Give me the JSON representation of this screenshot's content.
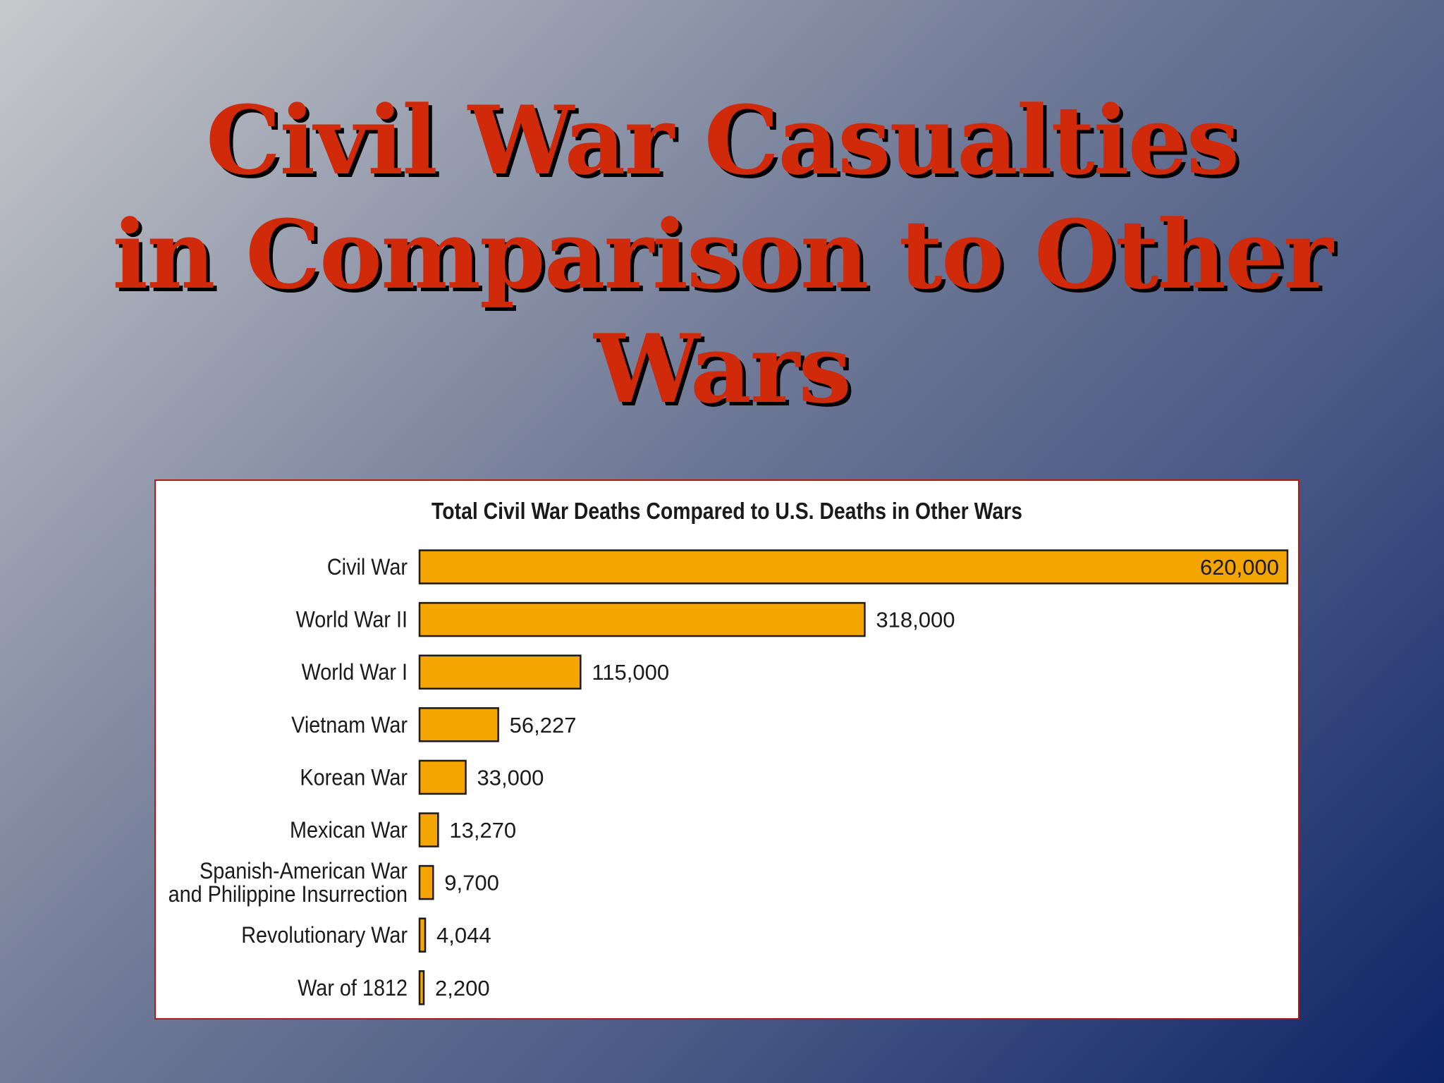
{
  "slide": {
    "title_lines": [
      "Civil War Casualties",
      "in Comparison to Other",
      "Wars"
    ]
  },
  "colors": {
    "title_text": "#d12a0a",
    "title_shadow": "#000000",
    "bar_fill": "#f5a500",
    "bar_stroke": "#1a1a1a",
    "panel_border": "#b01c1c"
  },
  "chart_data": {
    "type": "bar",
    "orientation": "horizontal",
    "title": "Total Civil War Deaths Compared to U.S. Deaths in Other Wars",
    "categories": [
      [
        "Civil War"
      ],
      [
        "World War II"
      ],
      [
        "World War I"
      ],
      [
        "Vietnam War"
      ],
      [
        "Korean War"
      ],
      [
        "Mexican War"
      ],
      [
        "Spanish-American War",
        "and Philippine Insurrection"
      ],
      [
        "Revolutionary War"
      ],
      [
        "War of 1812"
      ]
    ],
    "values": [
      620000,
      318000,
      115000,
      56227,
      33000,
      13270,
      9700,
      4044,
      2200
    ],
    "value_labels": [
      "620,000",
      "318,000",
      "115,000",
      "56,227",
      "33,000",
      "13,270",
      "9,700",
      "4,044",
      "2,200"
    ],
    "xlim": [
      0,
      620000
    ],
    "grid": false,
    "axes_visible": false,
    "label_inside_top_bar": true
  }
}
